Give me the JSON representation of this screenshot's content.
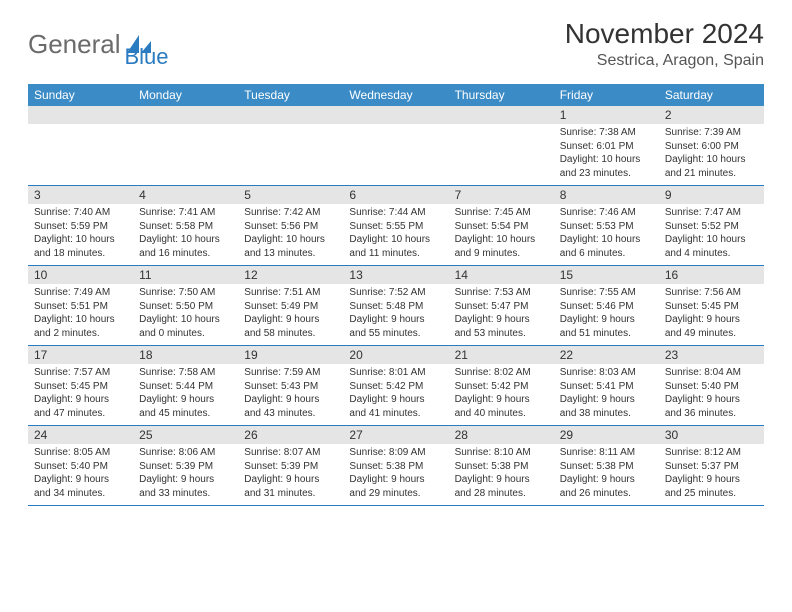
{
  "logo": {
    "text_gray": "General",
    "text_blue": "Blue"
  },
  "title": "November 2024",
  "location": "Sestrica, Aragon, Spain",
  "weekday_header_bg": "#3b8bc6",
  "weekday_text_color": "#ffffff",
  "row_border_color": "#2a7bbf",
  "daynum_bg": "#e5e5e5",
  "weekdays": [
    "Sunday",
    "Monday",
    "Tuesday",
    "Wednesday",
    "Thursday",
    "Friday",
    "Saturday"
  ],
  "weeks": [
    [
      null,
      null,
      null,
      null,
      null,
      {
        "n": "1",
        "sr": "Sunrise: 7:38 AM",
        "ss": "Sunset: 6:01 PM",
        "d1": "Daylight: 10 hours",
        "d2": "and 23 minutes."
      },
      {
        "n": "2",
        "sr": "Sunrise: 7:39 AM",
        "ss": "Sunset: 6:00 PM",
        "d1": "Daylight: 10 hours",
        "d2": "and 21 minutes."
      }
    ],
    [
      {
        "n": "3",
        "sr": "Sunrise: 7:40 AM",
        "ss": "Sunset: 5:59 PM",
        "d1": "Daylight: 10 hours",
        "d2": "and 18 minutes."
      },
      {
        "n": "4",
        "sr": "Sunrise: 7:41 AM",
        "ss": "Sunset: 5:58 PM",
        "d1": "Daylight: 10 hours",
        "d2": "and 16 minutes."
      },
      {
        "n": "5",
        "sr": "Sunrise: 7:42 AM",
        "ss": "Sunset: 5:56 PM",
        "d1": "Daylight: 10 hours",
        "d2": "and 13 minutes."
      },
      {
        "n": "6",
        "sr": "Sunrise: 7:44 AM",
        "ss": "Sunset: 5:55 PM",
        "d1": "Daylight: 10 hours",
        "d2": "and 11 minutes."
      },
      {
        "n": "7",
        "sr": "Sunrise: 7:45 AM",
        "ss": "Sunset: 5:54 PM",
        "d1": "Daylight: 10 hours",
        "d2": "and 9 minutes."
      },
      {
        "n": "8",
        "sr": "Sunrise: 7:46 AM",
        "ss": "Sunset: 5:53 PM",
        "d1": "Daylight: 10 hours",
        "d2": "and 6 minutes."
      },
      {
        "n": "9",
        "sr": "Sunrise: 7:47 AM",
        "ss": "Sunset: 5:52 PM",
        "d1": "Daylight: 10 hours",
        "d2": "and 4 minutes."
      }
    ],
    [
      {
        "n": "10",
        "sr": "Sunrise: 7:49 AM",
        "ss": "Sunset: 5:51 PM",
        "d1": "Daylight: 10 hours",
        "d2": "and 2 minutes."
      },
      {
        "n": "11",
        "sr": "Sunrise: 7:50 AM",
        "ss": "Sunset: 5:50 PM",
        "d1": "Daylight: 10 hours",
        "d2": "and 0 minutes."
      },
      {
        "n": "12",
        "sr": "Sunrise: 7:51 AM",
        "ss": "Sunset: 5:49 PM",
        "d1": "Daylight: 9 hours",
        "d2": "and 58 minutes."
      },
      {
        "n": "13",
        "sr": "Sunrise: 7:52 AM",
        "ss": "Sunset: 5:48 PM",
        "d1": "Daylight: 9 hours",
        "d2": "and 55 minutes."
      },
      {
        "n": "14",
        "sr": "Sunrise: 7:53 AM",
        "ss": "Sunset: 5:47 PM",
        "d1": "Daylight: 9 hours",
        "d2": "and 53 minutes."
      },
      {
        "n": "15",
        "sr": "Sunrise: 7:55 AM",
        "ss": "Sunset: 5:46 PM",
        "d1": "Daylight: 9 hours",
        "d2": "and 51 minutes."
      },
      {
        "n": "16",
        "sr": "Sunrise: 7:56 AM",
        "ss": "Sunset: 5:45 PM",
        "d1": "Daylight: 9 hours",
        "d2": "and 49 minutes."
      }
    ],
    [
      {
        "n": "17",
        "sr": "Sunrise: 7:57 AM",
        "ss": "Sunset: 5:45 PM",
        "d1": "Daylight: 9 hours",
        "d2": "and 47 minutes."
      },
      {
        "n": "18",
        "sr": "Sunrise: 7:58 AM",
        "ss": "Sunset: 5:44 PM",
        "d1": "Daylight: 9 hours",
        "d2": "and 45 minutes."
      },
      {
        "n": "19",
        "sr": "Sunrise: 7:59 AM",
        "ss": "Sunset: 5:43 PM",
        "d1": "Daylight: 9 hours",
        "d2": "and 43 minutes."
      },
      {
        "n": "20",
        "sr": "Sunrise: 8:01 AM",
        "ss": "Sunset: 5:42 PM",
        "d1": "Daylight: 9 hours",
        "d2": "and 41 minutes."
      },
      {
        "n": "21",
        "sr": "Sunrise: 8:02 AM",
        "ss": "Sunset: 5:42 PM",
        "d1": "Daylight: 9 hours",
        "d2": "and 40 minutes."
      },
      {
        "n": "22",
        "sr": "Sunrise: 8:03 AM",
        "ss": "Sunset: 5:41 PM",
        "d1": "Daylight: 9 hours",
        "d2": "and 38 minutes."
      },
      {
        "n": "23",
        "sr": "Sunrise: 8:04 AM",
        "ss": "Sunset: 5:40 PM",
        "d1": "Daylight: 9 hours",
        "d2": "and 36 minutes."
      }
    ],
    [
      {
        "n": "24",
        "sr": "Sunrise: 8:05 AM",
        "ss": "Sunset: 5:40 PM",
        "d1": "Daylight: 9 hours",
        "d2": "and 34 minutes."
      },
      {
        "n": "25",
        "sr": "Sunrise: 8:06 AM",
        "ss": "Sunset: 5:39 PM",
        "d1": "Daylight: 9 hours",
        "d2": "and 33 minutes."
      },
      {
        "n": "26",
        "sr": "Sunrise: 8:07 AM",
        "ss": "Sunset: 5:39 PM",
        "d1": "Daylight: 9 hours",
        "d2": "and 31 minutes."
      },
      {
        "n": "27",
        "sr": "Sunrise: 8:09 AM",
        "ss": "Sunset: 5:38 PM",
        "d1": "Daylight: 9 hours",
        "d2": "and 29 minutes."
      },
      {
        "n": "28",
        "sr": "Sunrise: 8:10 AM",
        "ss": "Sunset: 5:38 PM",
        "d1": "Daylight: 9 hours",
        "d2": "and 28 minutes."
      },
      {
        "n": "29",
        "sr": "Sunrise: 8:11 AM",
        "ss": "Sunset: 5:38 PM",
        "d1": "Daylight: 9 hours",
        "d2": "and 26 minutes."
      },
      {
        "n": "30",
        "sr": "Sunrise: 8:12 AM",
        "ss": "Sunset: 5:37 PM",
        "d1": "Daylight: 9 hours",
        "d2": "and 25 minutes."
      }
    ]
  ]
}
